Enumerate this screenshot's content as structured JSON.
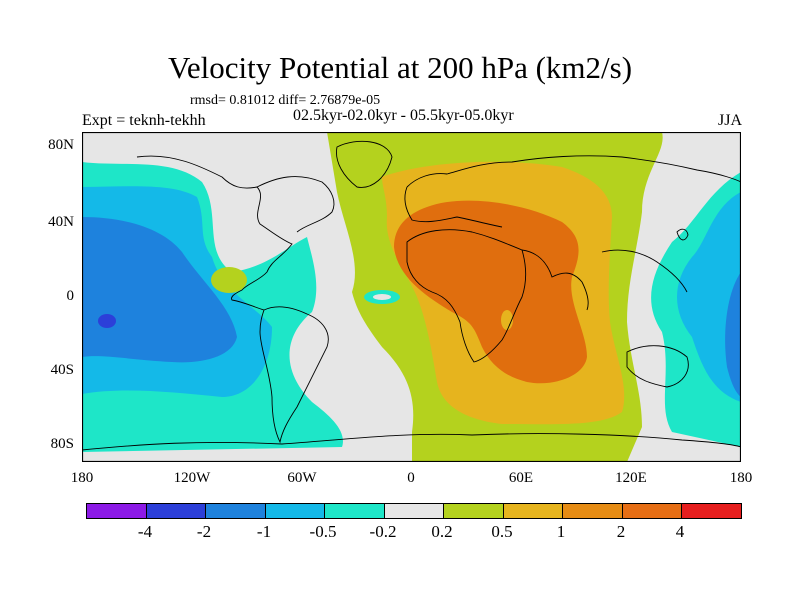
{
  "title": "Velocity Potential at 200 hPa (km2/s)",
  "stats": "rmsd= 0.81012 diff= 2.76879e-05",
  "expt": "Expt = teknh-tekhh",
  "period": "02.5kyr-02.0kyr - 05.5kyr-05.0kyr",
  "season": "JJA",
  "axes": {
    "y_ticks": [
      "80N",
      "40N",
      "0",
      "40S",
      "80S"
    ],
    "x_ticks": [
      "180",
      "120W",
      "60W",
      "0",
      "60E",
      "120E",
      "180"
    ]
  },
  "colorbar": {
    "colors": [
      "#8c1ae6",
      "#2c3fd9",
      "#1e82dd",
      "#14b9e8",
      "#1ee6c8",
      "#e6e6e6",
      "#b4d21e",
      "#e6b41e",
      "#e68c14",
      "#e66e14",
      "#e61e1e"
    ],
    "labels": [
      "-4",
      "-2",
      "-1",
      "-0.5",
      "-0.2",
      "0.2",
      "0.5",
      "1",
      "2",
      "4"
    ]
  }
}
